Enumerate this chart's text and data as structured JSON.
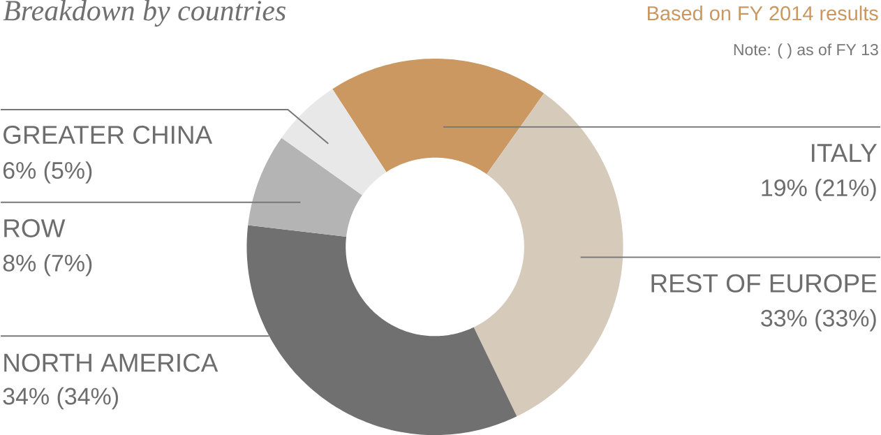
{
  "chart_data": {
    "type": "donut",
    "title": "Breakdown by countries",
    "subtitle": "Based on FY 2014 results",
    "annotations": [
      "Note: ( ) as of FY 13"
    ],
    "categories": [
      "ITALY",
      "REST OF EUROPE",
      "NORTH AMERICA",
      "ROW",
      "GREATER CHINA"
    ],
    "values": [
      19,
      33,
      34,
      8,
      6
    ],
    "colors": [
      "#cb9861",
      "#d6cbbb",
      "#707070",
      "#b4b4b4",
      "#e8e8e8"
    ],
    "value_labels": [
      "19% (21%)",
      "33% (33%)",
      "34% (34%)",
      "8% (7%)",
      "6% (5%)"
    ]
  }
}
